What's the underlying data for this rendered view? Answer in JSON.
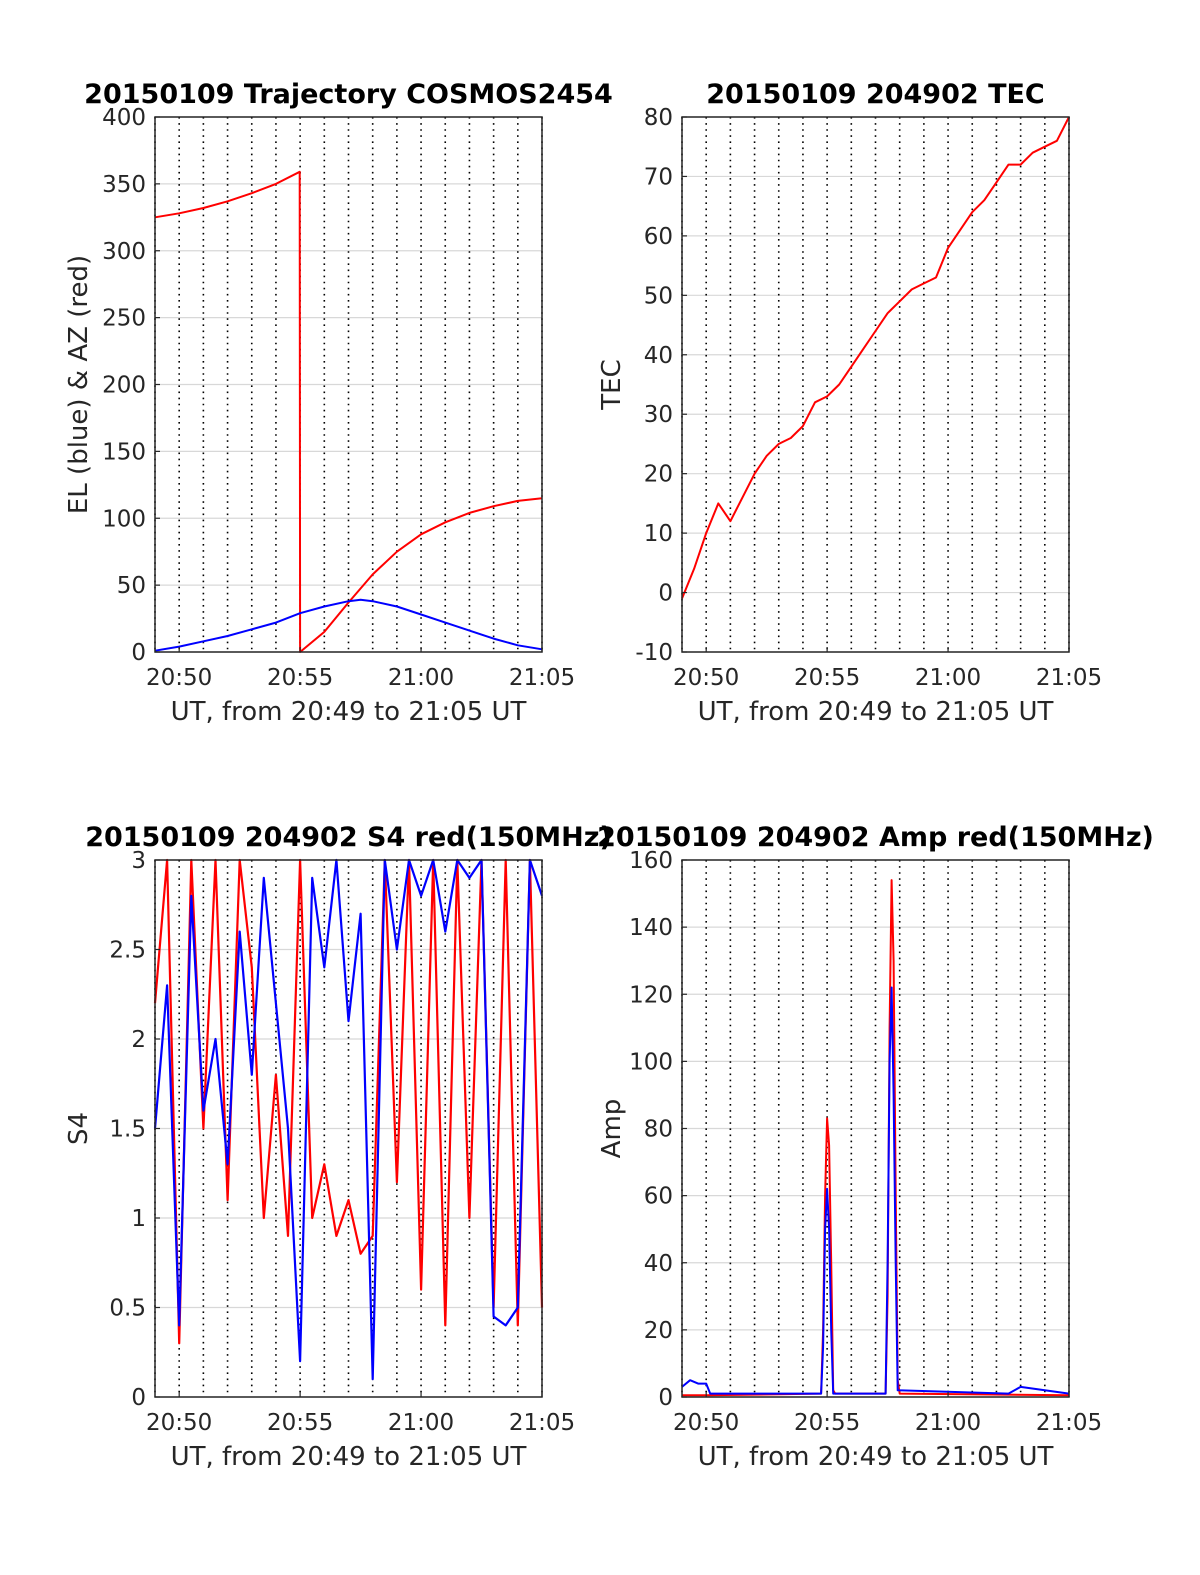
{
  "colors": {
    "red": "#ff0000",
    "blue": "#0000ff",
    "grid": "#d8d8d8",
    "axis": "#262626"
  },
  "chart_data": [
    {
      "type": "line",
      "title": "20150109 Trajectory COSMOS2454",
      "xlabel": "UT, from 20:49 to 21:05 UT",
      "ylabel": "EL (blue) & AZ (red)",
      "xlim": [
        "20:49",
        "21:05"
      ],
      "ylim": [
        0,
        400
      ],
      "xticks": [
        "20:50",
        "20:55",
        "21:00",
        "21:05"
      ],
      "yticks": [
        "0",
        "50",
        "100",
        "150",
        "200",
        "250",
        "300",
        "350",
        "400"
      ],
      "grid": true,
      "series": [
        {
          "color": "red",
          "x": [
            "20:49:00",
            "20:50:00",
            "20:51:00",
            "20:52:00",
            "20:53:00",
            "20:54:00",
            "20:54:59",
            "20:55:00",
            "20:56:00",
            "20:57:00",
            "20:58:00",
            "20:59:00",
            "21:00:00",
            "21:01:00",
            "21:02:00",
            "21:03:00",
            "21:04:00",
            "21:05:00"
          ],
          "values": [
            325,
            328,
            332,
            337,
            343,
            350,
            359,
            0,
            15,
            37,
            58,
            75,
            88,
            97,
            104,
            109,
            113,
            115
          ]
        },
        {
          "color": "blue",
          "x": [
            "20:49:00",
            "20:50:00",
            "20:51:00",
            "20:52:00",
            "20:53:00",
            "20:54:00",
            "20:55:00",
            "20:56:00",
            "20:57:00",
            "20:57:30",
            "20:58:00",
            "20:59:00",
            "21:00:00",
            "21:01:00",
            "21:02:00",
            "21:03:00",
            "21:04:00",
            "21:05:00"
          ],
          "values": [
            1,
            4,
            8,
            12,
            17,
            22,
            29,
            34,
            38,
            39,
            38,
            34,
            28,
            22,
            16,
            10,
            5,
            2
          ]
        }
      ]
    },
    {
      "type": "line",
      "title": "20150109 204902 TEC",
      "xlabel": "UT, from 20:49 to 21:05 UT",
      "ylabel": "TEC",
      "xlim": [
        "20:49",
        "21:05"
      ],
      "ylim": [
        -10,
        80
      ],
      "xticks": [
        "20:50",
        "20:55",
        "21:00",
        "21:05"
      ],
      "yticks": [
        "-10",
        "0",
        "10",
        "20",
        "30",
        "40",
        "50",
        "60",
        "70",
        "80"
      ],
      "grid": true,
      "series": [
        {
          "color": "red",
          "x": [
            "20:49:00",
            "20:49:30",
            "20:50:00",
            "20:50:30",
            "20:51:00",
            "20:51:30",
            "20:52:00",
            "20:52:30",
            "20:53:00",
            "20:53:30",
            "20:54:00",
            "20:54:30",
            "20:55:00",
            "20:55:30",
            "20:56:00",
            "20:56:30",
            "20:57:00",
            "20:57:30",
            "20:58:00",
            "20:58:30",
            "20:59:00",
            "20:59:30",
            "21:00:00",
            "21:00:30",
            "21:01:00",
            "21:01:30",
            "21:02:00",
            "21:02:30",
            "21:03:00",
            "21:03:30",
            "21:04:00",
            "21:04:30",
            "21:05:00"
          ],
          "values": [
            -1,
            4,
            10,
            15,
            12,
            16,
            20,
            23,
            25,
            26,
            28,
            32,
            33,
            35,
            38,
            41,
            44,
            47,
            49,
            51,
            52,
            53,
            58,
            61,
            64,
            66,
            69,
            72,
            72,
            74,
            75,
            76,
            80
          ]
        }
      ]
    },
    {
      "type": "line",
      "title": "20150109 204902 S4 red(150MHz)",
      "xlabel": "UT, from 20:49 to 21:05 UT",
      "ylabel": "S4",
      "xlim": [
        "20:49",
        "21:05"
      ],
      "ylim": [
        0,
        3
      ],
      "xticks": [
        "20:50",
        "20:55",
        "21:00",
        "21:05"
      ],
      "yticks": [
        "0",
        "0.5",
        "1",
        "1.5",
        "2",
        "2.5",
        "3"
      ],
      "grid": true,
      "series": [
        {
          "color": "red",
          "x": [
            "20:49:00",
            "20:49:30",
            "20:50:00",
            "20:50:30",
            "20:51:00",
            "20:51:30",
            "20:52:00",
            "20:52:30",
            "20:53:00",
            "20:53:30",
            "20:54:00",
            "20:54:30",
            "20:55:00",
            "20:55:30",
            "20:56:00",
            "20:56:30",
            "20:57:00",
            "20:57:30",
            "20:58:00",
            "20:58:30",
            "20:59:00",
            "20:59:30",
            "21:00:00",
            "21:00:30",
            "21:01:00",
            "21:01:30",
            "21:02:00",
            "21:02:30",
            "21:03:00",
            "21:03:30",
            "21:04:00",
            "21:04:30",
            "21:05:00"
          ],
          "values": [
            2.2,
            3.0,
            0.3,
            3.0,
            1.5,
            3.0,
            1.1,
            3.0,
            2.4,
            1.0,
            1.8,
            0.9,
            3.0,
            1.0,
            1.3,
            0.9,
            1.1,
            0.8,
            0.9,
            3.0,
            1.2,
            3.0,
            0.6,
            3.0,
            0.4,
            3.0,
            1.0,
            3.0,
            0.5,
            3.0,
            0.4,
            3.0,
            0.5
          ]
        },
        {
          "color": "blue",
          "x": [
            "20:49:00",
            "20:49:30",
            "20:50:00",
            "20:50:30",
            "20:51:00",
            "20:51:30",
            "20:52:00",
            "20:52:30",
            "20:53:00",
            "20:53:30",
            "20:54:00",
            "20:54:30",
            "20:55:00",
            "20:55:30",
            "20:56:00",
            "20:56:30",
            "20:57:00",
            "20:57:30",
            "20:58:00",
            "20:58:30",
            "20:59:00",
            "20:59:30",
            "21:00:00",
            "21:00:30",
            "21:01:00",
            "21:01:30",
            "21:02:00",
            "21:02:30",
            "21:03:00",
            "21:03:30",
            "21:04:00",
            "21:04:30",
            "21:05:00"
          ],
          "values": [
            1.5,
            2.3,
            0.4,
            2.8,
            1.6,
            2.0,
            1.3,
            2.6,
            1.8,
            2.9,
            2.2,
            1.5,
            0.2,
            2.9,
            2.4,
            3.0,
            2.1,
            2.7,
            0.1,
            3.0,
            2.5,
            3.0,
            2.8,
            3.0,
            2.6,
            3.0,
            2.9,
            3.0,
            0.45,
            0.4,
            0.5,
            3.0,
            2.8
          ]
        }
      ]
    },
    {
      "type": "line",
      "title": "20150109 204902 Amp red(150MHz)",
      "xlabel": "UT, from 20:49 to 21:05 UT",
      "ylabel": "Amp",
      "xlim": [
        "20:49",
        "21:05"
      ],
      "ylim": [
        0,
        160
      ],
      "xticks": [
        "20:50",
        "20:55",
        "21:00",
        "21:05"
      ],
      "yticks": [
        "0",
        "20",
        "40",
        "60",
        "80",
        "100",
        "120",
        "140",
        "160"
      ],
      "grid": true,
      "series": [
        {
          "color": "red",
          "x": [
            "20:49:00",
            "20:50:00",
            "20:54:45",
            "20:54:50",
            "20:54:55",
            "20:55:00",
            "20:55:05",
            "20:55:10",
            "20:55:15",
            "20:55:20",
            "20:57:25",
            "20:57:30",
            "20:57:35",
            "20:57:40",
            "20:57:45",
            "20:57:50",
            "20:57:55",
            "20:58:00",
            "21:05:00"
          ],
          "values": [
            0.5,
            0.5,
            1,
            20,
            60,
            83,
            75,
            40,
            2,
            1,
            1,
            30,
            110,
            154,
            130,
            60,
            5,
            1,
            0.5
          ]
        },
        {
          "color": "blue",
          "x": [
            "20:49:00",
            "20:49:20",
            "20:49:40",
            "20:50:00",
            "20:50:10",
            "20:52:00",
            "20:54:45",
            "20:54:50",
            "20:54:55",
            "20:55:00",
            "20:55:05",
            "20:55:10",
            "20:55:15",
            "20:57:25",
            "20:57:30",
            "20:57:35",
            "20:57:40",
            "20:57:45",
            "20:57:50",
            "20:57:55",
            "21:02:30",
            "21:03:00",
            "21:04:00",
            "21:05:00"
          ],
          "values": [
            3,
            5,
            4,
            4,
            1,
            1,
            1,
            15,
            50,
            62,
            50,
            20,
            1,
            1,
            40,
            100,
            122,
            90,
            40,
            2,
            1,
            3,
            2,
            1
          ]
        }
      ]
    }
  ]
}
